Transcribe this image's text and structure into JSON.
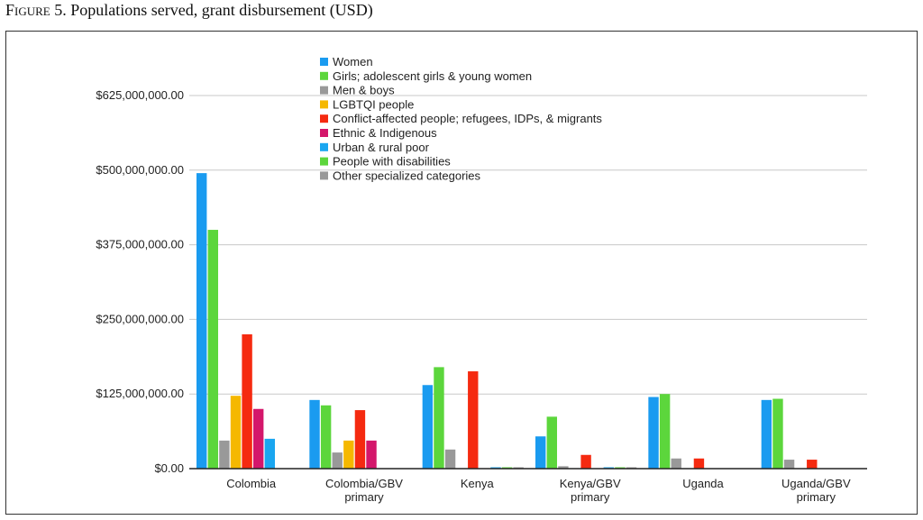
{
  "figure": {
    "label": "Figure 5.",
    "caption": "Populations served, grant disbursement (USD)"
  },
  "chart_data": {
    "type": "bar",
    "title": "",
    "xlabel": "",
    "ylabel": "",
    "ylim": [
      0,
      625000000
    ],
    "yticks": [
      0,
      125000000,
      250000000,
      375000000,
      500000000,
      625000000
    ],
    "ytick_labels": [
      "$0.00",
      "$125,000,000.00",
      "$250,000,000.00",
      "$375,000,000.00",
      "$500,000,000.00",
      "$625,000,000.00"
    ],
    "grid": true,
    "legend_position": "top-center",
    "categories": [
      [
        "Colombia"
      ],
      [
        "Colombia/GBV",
        "primary"
      ],
      [
        "Kenya"
      ],
      [
        "Kenya/GBV",
        "primary"
      ],
      [
        "Uganda"
      ],
      [
        "Uganda/GBV",
        "primary"
      ]
    ],
    "series": [
      {
        "name": "Women",
        "color": "#1a9bf0",
        "values": [
          495000000,
          115000000,
          140000000,
          54000000,
          120000000,
          115000000
        ]
      },
      {
        "name": "Girls; adolescent girls & young women",
        "color": "#5cd63c",
        "values": [
          400000000,
          106000000,
          170000000,
          87000000,
          125000000,
          117000000
        ]
      },
      {
        "name": "Men & boys",
        "color": "#999999",
        "values": [
          47000000,
          27000000,
          32000000,
          4000000,
          17000000,
          15000000
        ]
      },
      {
        "name": "LGBTQI people",
        "color": "#f5b800",
        "values": [
          122000000,
          47000000,
          0,
          0,
          0,
          0
        ]
      },
      {
        "name": "Conflict-affected people; refugees, IDPs, & migrants",
        "color": "#f52a10",
        "values": [
          225000000,
          98000000,
          163000000,
          23000000,
          17000000,
          15000000
        ]
      },
      {
        "name": "Ethnic & Indigenous",
        "color": "#d4176b",
        "values": [
          100000000,
          47000000,
          0,
          0,
          0,
          0
        ]
      },
      {
        "name": "Urban & rural poor",
        "color": "#1aa6f0",
        "values": [
          50000000,
          0,
          2000000,
          2000000,
          0,
          0
        ]
      },
      {
        "name": "People with disabilities",
        "color": "#5cd63c",
        "values": [
          0,
          0,
          2000000,
          2000000,
          0,
          0
        ]
      },
      {
        "name": "Other specialized categories",
        "color": "#999999",
        "values": [
          0,
          0,
          2000000,
          2000000,
          0,
          0
        ]
      }
    ]
  }
}
